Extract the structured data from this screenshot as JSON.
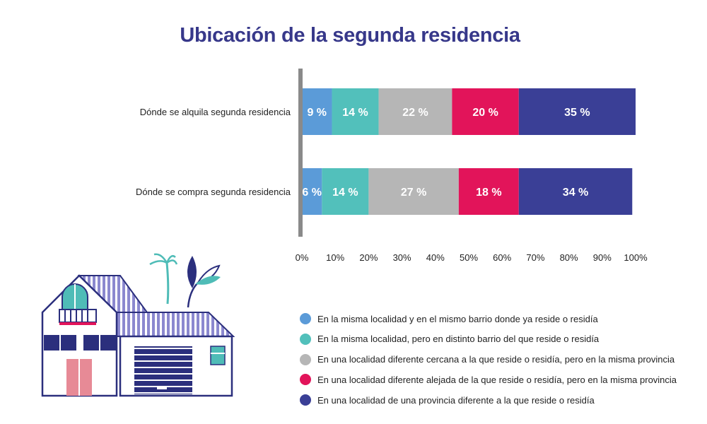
{
  "chart_data": {
    "type": "bar",
    "orientation": "horizontal",
    "stacked": true,
    "title": "Ubicación de la segunda residencia",
    "categories": [
      "Dónde se alquila segunda residencia",
      "Dónde se compra segunda residencia"
    ],
    "series": [
      {
        "name": "En la misma localidad y en el mismo barrio donde ya reside o residía",
        "color": "#5b9bd8",
        "values": [
          9,
          6
        ],
        "labels": [
          "9 %",
          "6 %"
        ]
      },
      {
        "name": "En la misma localidad, pero en distinto barrio del que reside o residía",
        "color": "#52c0bb",
        "values": [
          14,
          14
        ],
        "labels": [
          "14 %",
          "14 %"
        ]
      },
      {
        "name": "En una localidad diferente cercana a la que reside o residía, pero en la misma provincia",
        "color": "#b6b6b6",
        "values": [
          22,
          27
        ],
        "labels": [
          "22 %",
          "27 %"
        ]
      },
      {
        "name": "En una localidad diferente alejada de la que reside o residía, pero en la misma provincia",
        "color": "#e2145a",
        "values": [
          20,
          18
        ],
        "labels": [
          "20 %",
          "18 %"
        ]
      },
      {
        "name": "En una localidad de una provincia diferente a la que reside o residía",
        "color": "#3a3f96",
        "values": [
          35,
          34
        ],
        "labels": [
          "35 %",
          "34 %"
        ]
      }
    ],
    "xlim": [
      0,
      100
    ],
    "xticks": [
      "0%",
      "10%",
      "20%",
      "30%",
      "40%",
      "50%",
      "60%",
      "70%",
      "80%",
      "90%",
      "100%"
    ],
    "grid": false,
    "legend_position": "bottom-right"
  }
}
